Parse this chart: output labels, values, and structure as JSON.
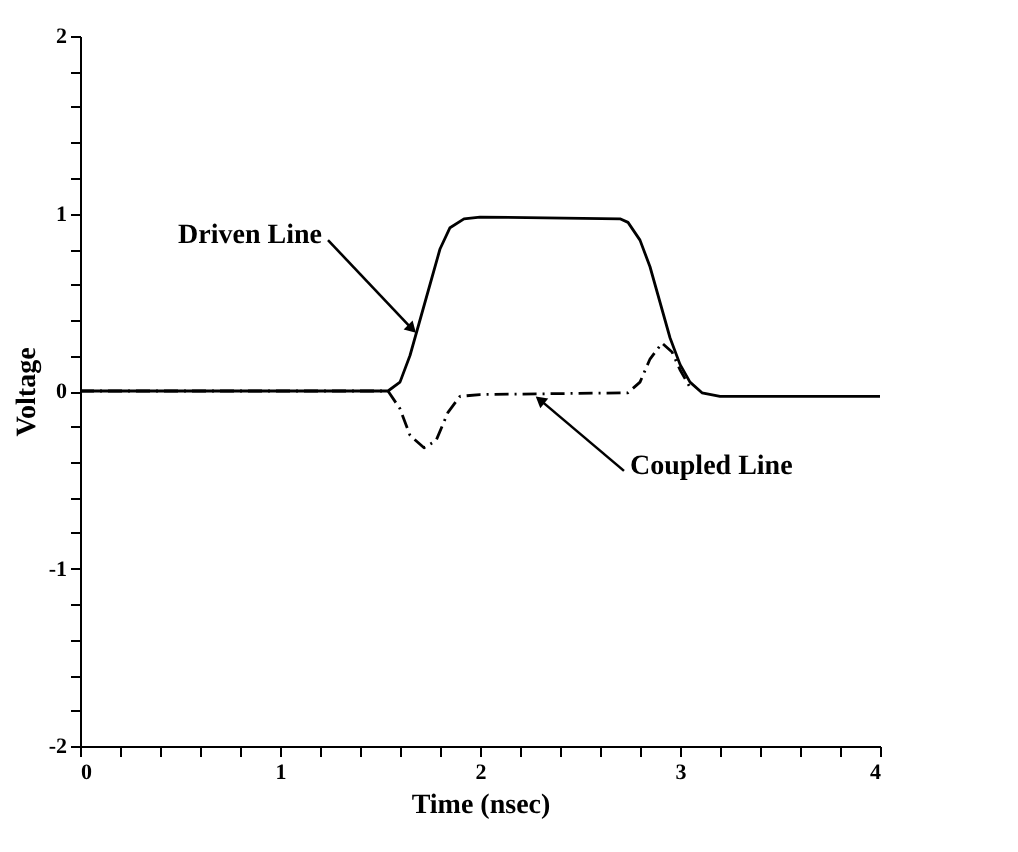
{
  "chart_data": {
    "type": "line",
    "xlabel": "Time (nsec)",
    "ylabel": "Voltage",
    "xlim": [
      0,
      4
    ],
    "ylim": [
      -2,
      2
    ],
    "xticks": [
      0,
      {
        "value": 0.2,
        "label": null
      },
      {
        "value": 0.4,
        "label": null
      },
      {
        "value": 0.6,
        "label": null
      },
      {
        "value": 0.8,
        "label": null
      },
      1,
      {
        "value": 1.2,
        "label": null
      },
      {
        "value": 1.4,
        "label": null
      },
      {
        "value": 1.6,
        "label": null
      },
      {
        "value": 1.8,
        "label": null
      },
      2,
      {
        "value": 2.2,
        "label": null
      },
      {
        "value": 2.4,
        "label": null
      },
      {
        "value": 2.6,
        "label": null
      },
      {
        "value": 2.8,
        "label": null
      },
      3,
      {
        "value": 3.2,
        "label": null
      },
      {
        "value": 3.4,
        "label": null
      },
      {
        "value": 3.6,
        "label": null
      },
      {
        "value": 3.8,
        "label": null
      },
      4
    ],
    "yticks": [
      -2,
      {
        "value": -1.8,
        "label": null
      },
      {
        "value": -1.6,
        "label": null
      },
      {
        "value": -1.4,
        "label": null
      },
      {
        "value": -1.2,
        "label": null
      },
      -1,
      {
        "value": -0.8,
        "label": null
      },
      {
        "value": -0.6,
        "label": null
      },
      {
        "value": -0.4,
        "label": null
      },
      {
        "value": -0.2,
        "label": null
      },
      0,
      {
        "value": 0.2,
        "label": null
      },
      {
        "value": 0.4,
        "label": null
      },
      {
        "value": 0.6,
        "label": null
      },
      {
        "value": 0.8,
        "label": null
      },
      1,
      {
        "value": 1.2,
        "label": null
      },
      {
        "value": 1.4,
        "label": null
      },
      {
        "value": 1.6,
        "label": null
      },
      {
        "value": 1.8,
        "label": null
      },
      2
    ],
    "grid": false,
    "marker": "none",
    "series": [
      {
        "color": "#000000",
        "line_style": "solid",
        "x": [
          0,
          1.54,
          1.6,
          1.65,
          1.7,
          1.75,
          1.8,
          1.85,
          1.92,
          2.0,
          2.7,
          2.74,
          2.8,
          2.85,
          2.9,
          2.95,
          3.0,
          3.05,
          3.11,
          3.2,
          4.0
        ],
        "values": [
          0,
          0,
          0.05,
          0.2,
          0.4,
          0.6,
          0.8,
          0.92,
          0.97,
          0.98,
          0.97,
          0.95,
          0.85,
          0.7,
          0.5,
          0.3,
          0.15,
          0.05,
          -0.01,
          -0.03,
          -0.03
        ]
      },
      {
        "color": "#000000",
        "line_style": "dashed",
        "x": [
          0,
          1.54,
          1.6,
          1.65,
          1.72,
          1.78,
          1.84,
          1.9,
          2.0,
          2.74,
          2.8,
          2.85,
          2.91,
          2.96,
          3.0,
          3.06
        ],
        "values": [
          0,
          0,
          -0.1,
          -0.25,
          -0.32,
          -0.28,
          -0.12,
          -0.03,
          -0.02,
          -0.01,
          0.05,
          0.18,
          0.27,
          0.22,
          0.12,
          0
        ]
      }
    ],
    "annotations": [
      {
        "text": "Driven Line",
        "x": 1.66,
        "y": 0.35
      },
      {
        "text": "Coupled Line",
        "x": 2.3,
        "y": -0.05
      }
    ]
  }
}
